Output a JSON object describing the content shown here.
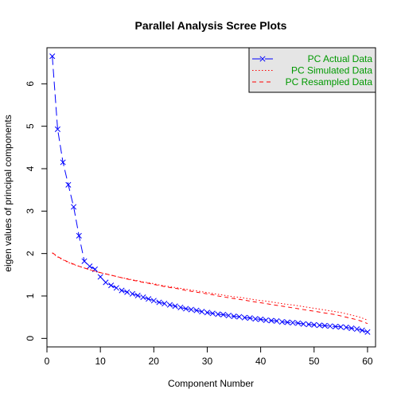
{
  "chart_data": {
    "type": "line",
    "title": "Parallel Analysis Scree Plots",
    "xlabel": "Component Number",
    "ylabel": "eigen values of principal components",
    "xlim": [
      0,
      61.5
    ],
    "ylim": [
      -0.2,
      6.85
    ],
    "x_ticks": [
      "0",
      "10",
      "20",
      "30",
      "40",
      "50",
      "60"
    ],
    "y_ticks": [
      "0",
      "1",
      "2",
      "3",
      "4",
      "5",
      "6"
    ],
    "grid": false,
    "legend_position": "top-right",
    "legend_fill": "#e5e5e5",
    "colors": {
      "actual": "#0000ff",
      "simulated": "#ff0000",
      "resampled": "#ff0000"
    },
    "x": [
      1,
      2,
      3,
      4,
      5,
      6,
      7,
      8,
      9,
      10,
      11,
      12,
      13,
      14,
      15,
      16,
      17,
      18,
      19,
      20,
      21,
      22,
      23,
      24,
      25,
      26,
      27,
      28,
      29,
      30,
      31,
      32,
      33,
      34,
      35,
      36,
      37,
      38,
      39,
      40,
      41,
      42,
      43,
      44,
      45,
      46,
      47,
      48,
      49,
      50,
      51,
      52,
      53,
      54,
      55,
      56,
      57,
      58,
      59,
      60
    ],
    "series": [
      {
        "name": "PC  Actual Data",
        "line_style": "longdash",
        "marker": "x",
        "values": [
          6.65,
          4.93,
          4.15,
          3.62,
          3.1,
          2.42,
          1.82,
          1.7,
          1.63,
          1.45,
          1.32,
          1.25,
          1.19,
          1.13,
          1.09,
          1.05,
          1.01,
          0.97,
          0.93,
          0.89,
          0.85,
          0.82,
          0.79,
          0.76,
          0.73,
          0.7,
          0.68,
          0.66,
          0.63,
          0.61,
          0.59,
          0.57,
          0.56,
          0.54,
          0.52,
          0.51,
          0.49,
          0.48,
          0.46,
          0.45,
          0.43,
          0.42,
          0.41,
          0.39,
          0.38,
          0.37,
          0.36,
          0.34,
          0.33,
          0.32,
          0.31,
          0.3,
          0.29,
          0.28,
          0.27,
          0.26,
          0.24,
          0.22,
          0.19,
          0.15
        ]
      },
      {
        "name": "PC  Simulated Data",
        "line_style": "dotted",
        "marker": "",
        "values": [
          2.01,
          1.92,
          1.85,
          1.79,
          1.74,
          1.7,
          1.66,
          1.62,
          1.58,
          1.55,
          1.52,
          1.49,
          1.46,
          1.43,
          1.41,
          1.38,
          1.36,
          1.33,
          1.31,
          1.29,
          1.26,
          1.24,
          1.22,
          1.2,
          1.18,
          1.16,
          1.14,
          1.12,
          1.1,
          1.08,
          1.06,
          1.04,
          1.02,
          1.0,
          0.98,
          0.97,
          0.95,
          0.93,
          0.91,
          0.89,
          0.88,
          0.86,
          0.84,
          0.82,
          0.8,
          0.79,
          0.77,
          0.75,
          0.73,
          0.71,
          0.69,
          0.67,
          0.65,
          0.63,
          0.61,
          0.58,
          0.55,
          0.52,
          0.48,
          0.43
        ]
      },
      {
        "name": "PC  Resampled Data",
        "line_style": "dashed",
        "marker": "",
        "values": [
          2.02,
          1.93,
          1.86,
          1.8,
          1.75,
          1.7,
          1.66,
          1.62,
          1.58,
          1.55,
          1.52,
          1.49,
          1.46,
          1.43,
          1.4,
          1.37,
          1.35,
          1.32,
          1.3,
          1.27,
          1.25,
          1.22,
          1.2,
          1.18,
          1.16,
          1.13,
          1.11,
          1.09,
          1.07,
          1.05,
          1.03,
          1.0,
          0.98,
          0.96,
          0.94,
          0.92,
          0.9,
          0.88,
          0.86,
          0.84,
          0.82,
          0.8,
          0.78,
          0.76,
          0.74,
          0.72,
          0.7,
          0.68,
          0.66,
          0.64,
          0.62,
          0.6,
          0.58,
          0.56,
          0.53,
          0.5,
          0.47,
          0.44,
          0.4,
          0.35
        ]
      }
    ]
  }
}
